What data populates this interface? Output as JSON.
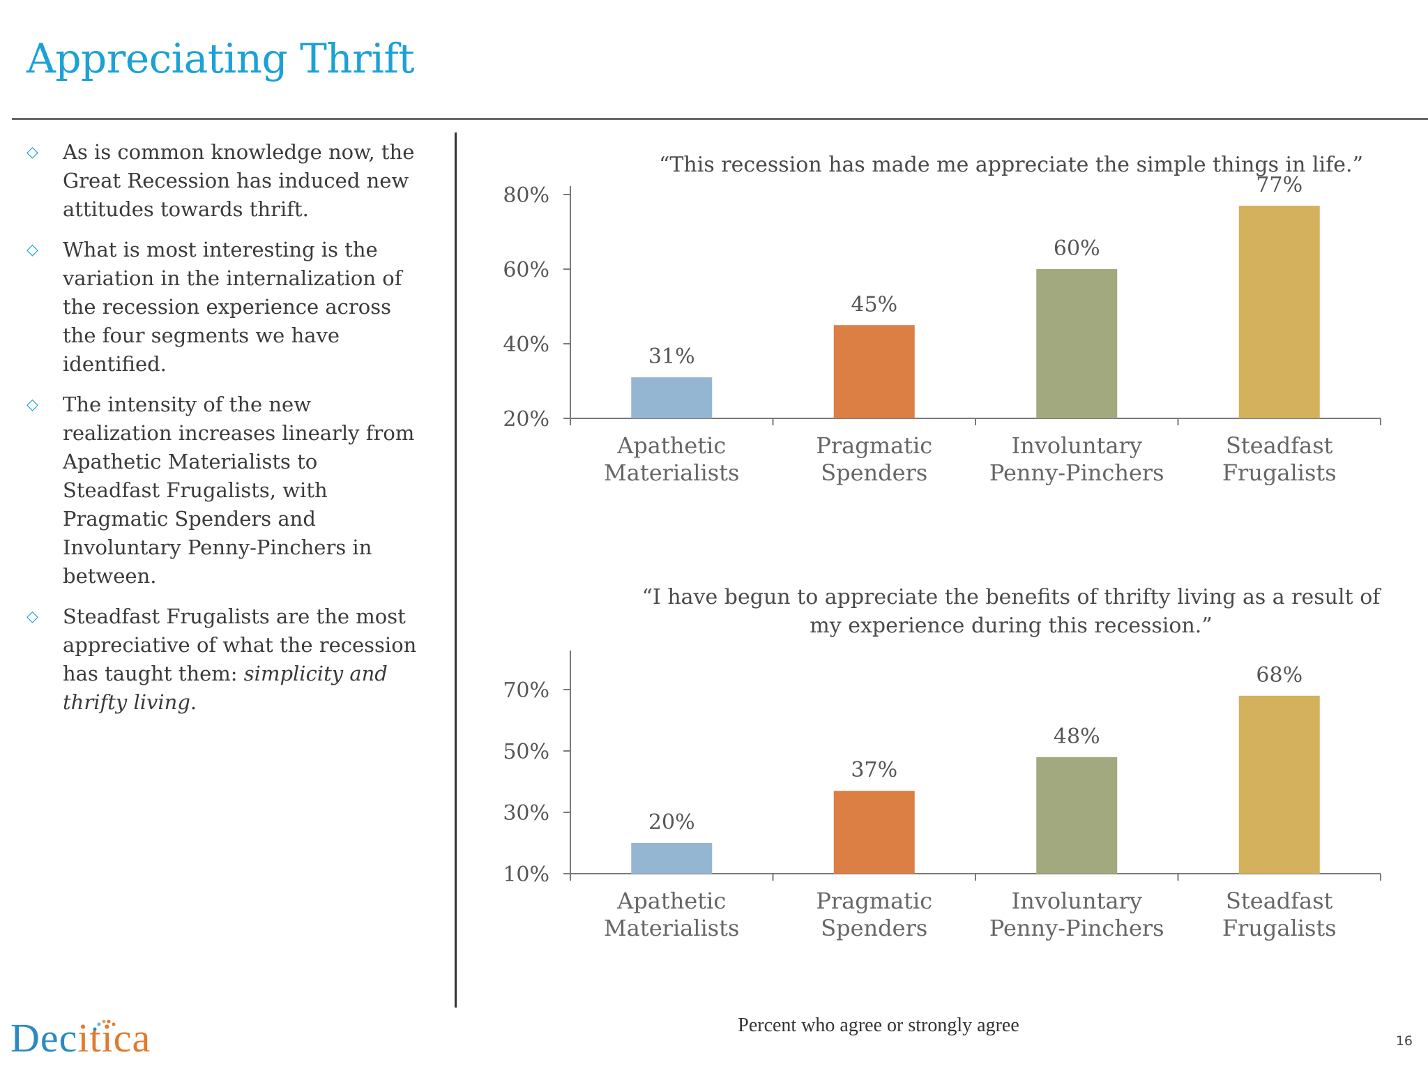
{
  "header": {
    "title": "Appreciating Thrift"
  },
  "bullets": [
    {
      "text": "As is common knowledge now, the Great Recession has induced new attitudes towards thrift."
    },
    {
      "text": "What is most interesting is the variation in the internalization of the recession experience across the four segments we have identified."
    },
    {
      "text": "The intensity of the new realization increases linearly from Apathetic Materialists to Steadfast Frugalists, with Pragmatic Spenders and Involuntary Penny-Pinchers in between."
    },
    {
      "text": "Steadfast Frugalists are the most appreciative of what the recession has taught them:",
      "emphasis": "simplicity and thrifty living",
      "suffix": "."
    }
  ],
  "chart_data": [
    {
      "type": "bar",
      "title": "“This recession has made me appreciate the simple things in life.”",
      "categories": [
        "Apathetic Materialists",
        "Pragmatic Spenders",
        "Involuntary Penny-Pinchers",
        "Steadfast Frugalists"
      ],
      "category_lines": [
        [
          "Apathetic",
          "Materialists"
        ],
        [
          "Pragmatic",
          "Spenders"
        ],
        [
          "Involuntary",
          "Penny-Pinchers"
        ],
        [
          "Steadfast",
          "Frugalists"
        ]
      ],
      "values": [
        31,
        45,
        60,
        77
      ],
      "value_labels": [
        "31%",
        "45%",
        "60%",
        "77%"
      ],
      "colors": [
        "#95b6d3",
        "#db7f44",
        "#a3a97e",
        "#d4b15d"
      ],
      "yticks": [
        20,
        40,
        60,
        80
      ],
      "ytick_labels": [
        "20%",
        "40%",
        "60%",
        "80%"
      ],
      "ylim": [
        20,
        80
      ],
      "grid": false
    },
    {
      "type": "bar",
      "title": "“I have begun to appreciate the benefits of thrifty living as a result of my experience during this recession.”",
      "categories": [
        "Apathetic Materialists",
        "Pragmatic Spenders",
        "Involuntary Penny-Pinchers",
        "Steadfast Frugalists"
      ],
      "category_lines": [
        [
          "Apathetic",
          "Materialists"
        ],
        [
          "Pragmatic",
          "Spenders"
        ],
        [
          "Involuntary",
          "Penny-Pinchers"
        ],
        [
          "Steadfast",
          "Frugalists"
        ]
      ],
      "values": [
        20,
        37,
        48,
        68
      ],
      "value_labels": [
        "20%",
        "37%",
        "48%",
        "68%"
      ],
      "colors": [
        "#95b6d3",
        "#db7f44",
        "#a3a97e",
        "#d4b15d"
      ],
      "yticks": [
        10,
        30,
        50,
        70
      ],
      "ytick_labels": [
        "10%",
        "30%",
        "50%",
        "70%"
      ],
      "ylim": [
        10,
        80
      ],
      "grid": false
    }
  ],
  "footer": {
    "note": "Percent who agree or strongly agree",
    "page": "16"
  },
  "brand": {
    "name_part1": "Dec",
    "name_part2": "itica",
    "color1": "#2a8bc0",
    "color2": "#e07a2e"
  }
}
